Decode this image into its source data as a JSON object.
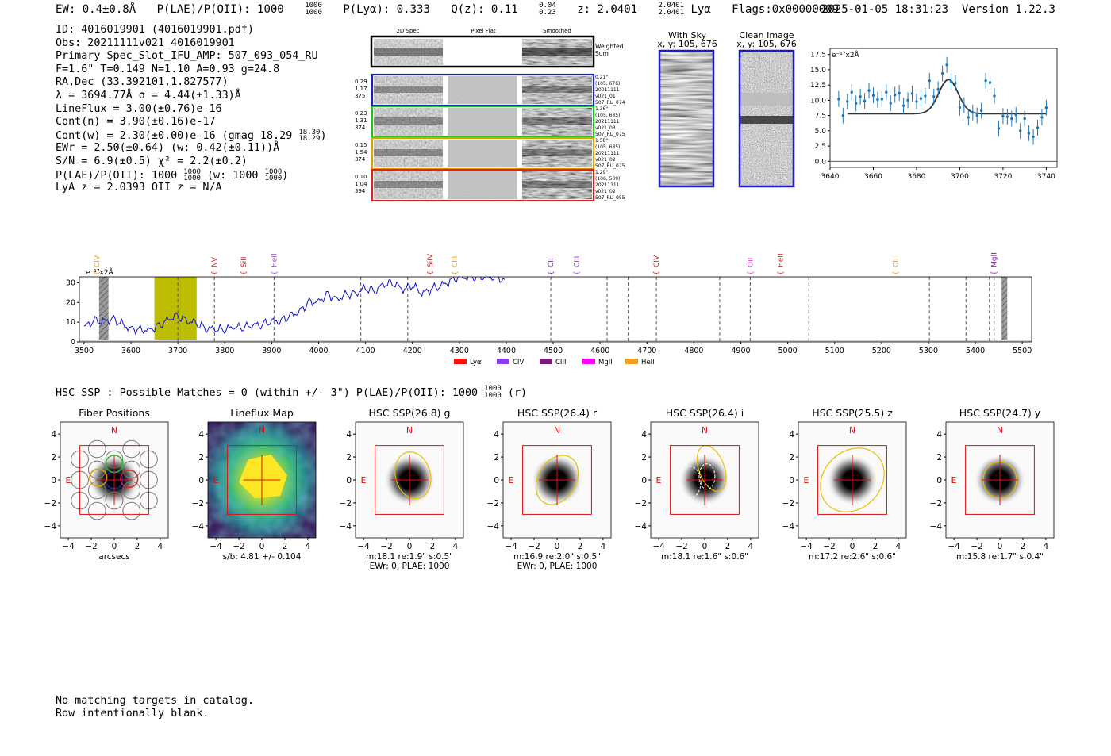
{
  "header": {
    "ew": "EW: 0.4±0.8Å",
    "plae_label": "P(LAE)/P(OII): 1000",
    "plae_sup": "1000",
    "plae_sub": "1000",
    "plya": "P(Lyα): 0.333",
    "qz_label": "Q(z): 0.11",
    "qz_sup": "0.04",
    "qz_sub": "0.23",
    "z_label": "z: 2.0401",
    "z_sup": "2.0401",
    "z_sub": "2.0401",
    "z_line": "Lyα",
    "flags": "Flags:0x00000009",
    "timestamp": "2025-01-05 18:31:23",
    "version": "Version 1.22.3"
  },
  "info": [
    "ID: 4016019901 (4016019901.pdf)",
    "Obs: 20211111v021_4016019901",
    "Primary Spec_Slot_IFU_AMP: 507_093_054_RU",
    "F=1.6\"  T=0.149  N=1.10  A=0.93  g=24.8",
    "RA,Dec (33.392101,1.827577)",
    "λ = 3694.77Å  σ = 4.44(±1.33)Å",
    "LineFlux = 3.00(±0.76)e-16",
    "Cont(n) = 3.90(±0.16)e-17",
    "Cont(w) = 2.30(±0.00)e-16 (gmag 18.29",
    "EWr = 2.50(±0.64) (w: 0.42(±0.11))Å",
    "S/N = 6.9(±0.5)  χ² = 2.2(±0.2)",
    "P(LAE)/P(OII): 1000",
    "LyA z = 2.0393  OII z = N/A"
  ],
  "info_extra": {
    "gmag_sup": "18.30",
    "gmag_sub": "18.29",
    "gmag_close": ")",
    "plae_sup": "1000",
    "plae_sub": "1000",
    "plae_w": "(w: 1000",
    "plae_w_sup": "1000",
    "plae_w_sub": "1000",
    "plae_w_close": ")"
  },
  "stamps": {
    "col_titles": [
      "2D Spec",
      "Pixel Flat",
      "Smoothed"
    ],
    "weighted_label": "Weighted Sum",
    "rows": [
      {
        "weights": [
          "0.29",
          "1.17",
          "375"
        ],
        "meta": [
          "0.21\"",
          "(105, 676)",
          "20211111",
          "v021_01",
          "507_RU_074"
        ],
        "color": "#1f1fbf"
      },
      {
        "weights": [
          "0.23",
          "1.31",
          "374"
        ],
        "meta": [
          "1.36\"",
          "(105, 685)",
          "20211111",
          "v021_03",
          "507_RU_075"
        ],
        "color": "#22c022"
      },
      {
        "weights": [
          "0.15",
          "1.54",
          "374"
        ],
        "meta": [
          "1.58\"",
          "(105, 685)",
          "20211111",
          "v021_02",
          "507_RU_075"
        ],
        "color": "#e0a000"
      },
      {
        "weights": [
          "0.10",
          "1.04",
          "394"
        ],
        "meta": [
          "1.29\"",
          "(106, 509)",
          "20211111",
          "v021_02",
          "507_RU_055"
        ],
        "color": "#e02020"
      }
    ]
  },
  "cutouts": [
    {
      "title": "With Sky",
      "sub": "x, y: 105, 676"
    },
    {
      "title": "Clean Image",
      "sub": "x, y: 105, 676"
    }
  ],
  "chart_data": [
    {
      "type": "scatter",
      "name": "line-fit",
      "ylabel_unit": "e⁻¹⁷x2Å",
      "xlim": [
        3640,
        3745
      ],
      "ylim": [
        -1,
        18.5
      ],
      "xticks": [
        3640,
        3660,
        3680,
        3700,
        3720,
        3740
      ],
      "yticks": [
        0.0,
        2.5,
        5.0,
        7.5,
        10.0,
        12.5,
        15.0,
        17.5
      ],
      "x": [
        3644,
        3646,
        3648,
        3650,
        3652,
        3654,
        3656,
        3658,
        3660,
        3662,
        3664,
        3666,
        3668,
        3670,
        3672,
        3674,
        3676,
        3678,
        3680,
        3682,
        3684,
        3686,
        3688,
        3690,
        3692,
        3694,
        3696,
        3698,
        3700,
        3702,
        3704,
        3706,
        3708,
        3710,
        3712,
        3714,
        3716,
        3718,
        3720,
        3722,
        3724,
        3726,
        3728,
        3730,
        3732,
        3734,
        3736,
        3738,
        3740
      ],
      "y": [
        10.2,
        7.5,
        9.8,
        11.3,
        9.5,
        10.6,
        9.9,
        11.6,
        10.8,
        10.1,
        10.2,
        11.3,
        9.5,
        10.9,
        11.2,
        9.1,
        10.0,
        11.1,
        9.8,
        10.3,
        10.7,
        13.2,
        10.6,
        11.8,
        14.4,
        15.8,
        13.1,
        12.8,
        8.8,
        9.2,
        7.2,
        8.0,
        7.5,
        8.3,
        13.2,
        12.9,
        10.7,
        5.4,
        7.4,
        7.3,
        7.0,
        7.6,
        5.0,
        7.0,
        4.6,
        4.0,
        5.5,
        7.2,
        8.8
      ],
      "fit": {
        "center": 3694.77,
        "sigma": 4.44,
        "continuum": 7.8,
        "amplitude": 5.6,
        "xrange": [
          3648,
          3740
        ]
      }
    },
    {
      "type": "line",
      "name": "full-spectrum",
      "ylabel_unit": "e⁻¹⁷x2Å",
      "xlim": [
        3490,
        5520
      ],
      "ylim": [
        0,
        33
      ],
      "xticks": [
        3500,
        3600,
        3700,
        3800,
        3900,
        4000,
        4100,
        4200,
        4300,
        4400,
        4500,
        4600,
        4700,
        4800,
        4900,
        5000,
        5100,
        5200,
        5300,
        5400,
        5500
      ],
      "yticks": [
        0,
        10,
        20,
        30
      ],
      "spectrum_x": [
        3500,
        3520,
        3540,
        3560,
        3580,
        3600,
        3620,
        3640,
        3660,
        3680,
        3700,
        3720,
        3740,
        3760,
        3780,
        3800,
        3820,
        3840,
        3860,
        3880,
        3900,
        3920,
        3940,
        3960,
        3980,
        4000,
        4020,
        4040,
        4060,
        4080,
        4100,
        4120,
        4140,
        4160,
        4180,
        4200,
        4220,
        4240,
        4260,
        4280,
        4300,
        4320,
        4340,
        4360,
        4380,
        4400
      ],
      "spectrum_y": [
        7,
        11,
        10,
        12,
        9,
        7,
        6,
        6.5,
        8,
        12,
        13,
        11,
        9,
        7,
        6,
        6.5,
        7,
        7.5,
        8,
        9,
        10,
        11,
        13,
        16,
        20,
        21,
        24,
        22,
        24,
        25,
        27,
        26,
        29,
        30,
        26,
        29,
        24,
        27,
        28,
        31,
        33,
        33,
        33,
        33,
        33,
        31
      ],
      "lines": [
        {
          "name": "CIV",
          "wave": 3527,
          "color": "#e8a020",
          "dash": false
        },
        {
          "name": "NV",
          "wave": 3778,
          "color": "#e02020",
          "dash": true
        },
        {
          "name": "SiII",
          "wave": 3840,
          "color": "#e02020",
          "dash": false
        },
        {
          "name": "HeII",
          "wave": 3905,
          "color": "#a040e0",
          "dash": true
        },
        {
          "name": "SiIV",
          "wave": 4238,
          "color": "#e02020",
          "dash": false
        },
        {
          "name": "CIII",
          "wave": 4290,
          "color": "#e8a020",
          "dash": false
        },
        {
          "name": "CII",
          "wave": 4495,
          "color": "#8020c0",
          "dash": true
        },
        {
          "name": "CIII",
          "wave": 4550,
          "color": "#a040e0",
          "dash": false
        },
        {
          "name": "CIV",
          "wave": 4720,
          "color": "#e02020",
          "dash": true
        },
        {
          "name": "OII",
          "wave": 4920,
          "color": "#e040e0",
          "dash": true
        },
        {
          "name": "HeII",
          "wave": 4985,
          "color": "#e02020",
          "dash": false
        },
        {
          "name": "CII",
          "wave": 5230,
          "color": "#e8a020",
          "dash": false
        },
        {
          "name": "MgII",
          "wave": 5440,
          "color": "#8020a0",
          "dash": true
        }
      ],
      "extra_dashed": [
        3700,
        4090,
        4190,
        4615,
        4660,
        4855,
        5045,
        5302,
        5380,
        5430
      ],
      "highlight": [
        3650,
        3740
      ],
      "hatched": [
        [
          3532,
          3552
        ],
        [
          5456,
          5468
        ]
      ],
      "legend": [
        {
          "label": "Lyα",
          "color": "#ff1010"
        },
        {
          "label": "CIV",
          "color": "#8a3cf0"
        },
        {
          "label": "CIII",
          "color": "#7a1a7a"
        },
        {
          "label": "MgII",
          "color": "#ff00ff"
        },
        {
          "label": "HeII",
          "color": "#f0a020"
        }
      ]
    }
  ],
  "hsc": {
    "summary": "HSC-SSP : Possible Matches = 0 (within +/- 3\")  P(LAE)/P(OII): 1000",
    "summary_sup": "1000",
    "summary_sub": "1000",
    "summary_tail": "(r)",
    "panels": [
      {
        "title": "Fiber Positions",
        "label1": "arcsecs",
        "label2": ""
      },
      {
        "title": "Lineflux Map",
        "label1": "s/b: 4.81 +/- 0.104",
        "label2": ""
      },
      {
        "title": "HSC SSP(26.8) g",
        "label1": "m:18.1  re:1.9\"  s:0.5\"",
        "label2": "EWr: 0, PLAE: 1000"
      },
      {
        "title": "HSC SSP(26.4) r",
        "label1": "m:16.9  re:2.0\"  s:0.5\"",
        "label2": "EWr: 0, PLAE: 1000"
      },
      {
        "title": "HSC SSP(26.4) i",
        "label1": "m:18.1  re:1.6\"  s:0.6\"",
        "label2": ""
      },
      {
        "title": "HSC SSP(25.5) z",
        "label1": "m:17.2  re:2.6\"  s:0.6\"",
        "label2": ""
      },
      {
        "title": "HSC SSP(24.7) y",
        "label1": "m:15.8  re:1.7\"  s:0.4\"",
        "label2": ""
      }
    ],
    "ticks": [
      -4,
      -2,
      0,
      2,
      4
    ],
    "north": "N",
    "east": "E"
  },
  "footer": [
    "No matching targets in catalog.",
    "Row intentionally blank."
  ]
}
